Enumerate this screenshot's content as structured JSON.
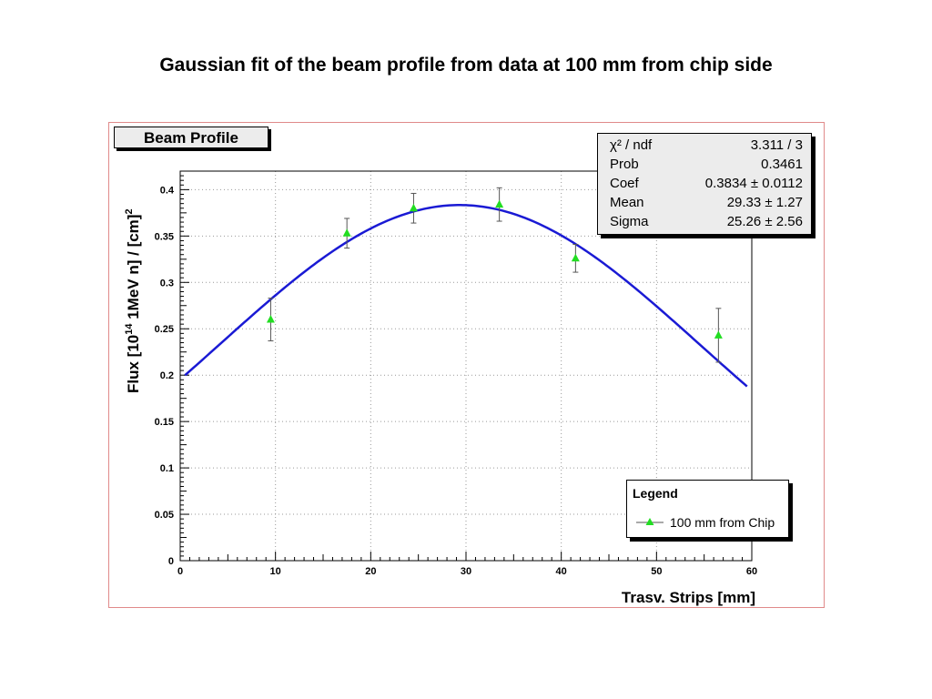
{
  "slide_title": "Gaussian fit of the beam profile from data at 100 mm from chip side",
  "pave_title": "Beam Profile",
  "stats": [
    {
      "label": "χ² / ndf",
      "value": "3.311 / 3"
    },
    {
      "label": "Prob",
      "value": "0.3461"
    },
    {
      "label": "Coef",
      "value": "0.3834 ± 0.0112"
    },
    {
      "label": "Mean",
      "value": "29.33 ± 1.27"
    },
    {
      "label": "Sigma",
      "value": "25.26 ± 2.56"
    }
  ],
  "legend": {
    "header": "Legend",
    "entry": "100 mm from Chip"
  },
  "colors": {
    "fit_line": "#1a1ad4",
    "marker": "#22dd22",
    "error_bar": "#555555",
    "frame_border": "#e08a8a",
    "grid": "#999999"
  },
  "chart_data": {
    "type": "scatter",
    "title": "Beam Profile",
    "xlabel": "Trasv. Strips [mm]",
    "ylabel": "Flux [10^14 1MeV n] / [cm]^2",
    "xlim": [
      0,
      60
    ],
    "ylim": [
      0,
      0.42
    ],
    "x_ticks": [
      0,
      10,
      20,
      30,
      40,
      50,
      60
    ],
    "x_tick_labels": [
      "0",
      "10",
      "20",
      "30",
      "40",
      "50",
      "60"
    ],
    "y_ticks": [
      0,
      0.05,
      0.1,
      0.15,
      0.2,
      0.25,
      0.3,
      0.35,
      0.4
    ],
    "y_tick_labels": [
      "0",
      "0.05",
      "0.1",
      "0.15",
      "0.2",
      "0.25",
      "0.3",
      "0.35",
      "0.4"
    ],
    "grid": true,
    "legend_position": "bottom-right",
    "series": [
      {
        "name": "100 mm from Chip",
        "x": [
          9.5,
          17.5,
          24.5,
          33.5,
          41.5,
          56.5
        ],
        "y": [
          0.26,
          0.353,
          0.38,
          0.384,
          0.326,
          0.243
        ],
        "y_err": [
          0.023,
          0.016,
          0.016,
          0.018,
          0.015,
          0.029
        ]
      }
    ],
    "fit": {
      "function": "gaussian",
      "coef": 0.3834,
      "mean": 29.33,
      "sigma": 25.26,
      "x_range": [
        0.5,
        59.5
      ]
    }
  }
}
